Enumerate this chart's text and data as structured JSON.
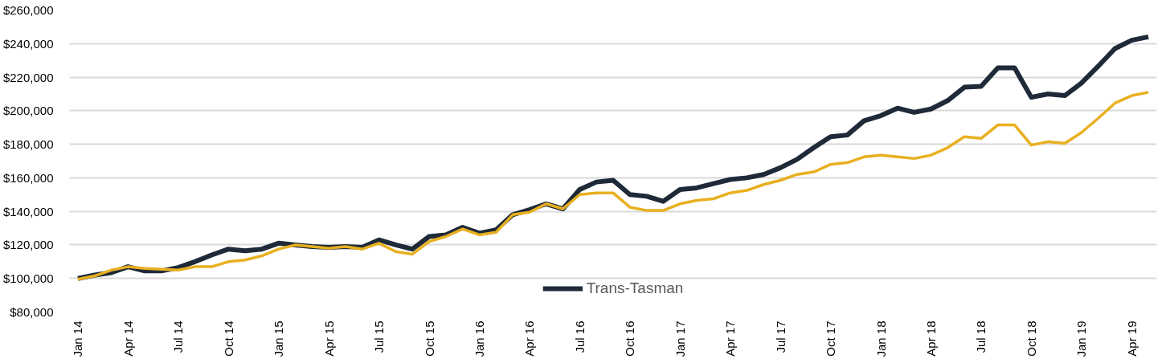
{
  "chart_data": {
    "type": "line",
    "categories": [
      "Jan 14",
      null,
      null,
      "Apr 14",
      null,
      null,
      "Jul 14",
      null,
      null,
      "Oct 14",
      null,
      null,
      "Jan 15",
      null,
      null,
      "Apr 15",
      null,
      null,
      "Jul 15",
      null,
      null,
      "Oct 15",
      null,
      null,
      "Jan 16",
      null,
      null,
      "Apr 16",
      null,
      null,
      "Jul 16",
      null,
      null,
      "Oct 16",
      null,
      null,
      "Jan 17",
      null,
      null,
      "Apr 17",
      null,
      null,
      "Jul 17",
      null,
      null,
      "Oct 17",
      null,
      null,
      "Jan 18",
      null,
      null,
      "Apr 18",
      null,
      null,
      "Jul 18",
      null,
      null,
      "Oct 18",
      null,
      null,
      "Jan 19",
      null,
      null,
      "Apr 19",
      null
    ],
    "series": [
      {
        "name": "Trans-Tasman",
        "color": "#1f2a38",
        "values": [
          100000,
          102000,
          103500,
          107000,
          104500,
          104500,
          106500,
          110000,
          114000,
          117500,
          116500,
          117500,
          121000,
          120000,
          119000,
          118500,
          119000,
          118500,
          123000,
          120000,
          117500,
          125000,
          126000,
          130500,
          127000,
          129000,
          138000,
          141000,
          144500,
          141500,
          153000,
          157500,
          158500,
          150000,
          149000,
          146000,
          153000,
          154000,
          156500,
          159000,
          160000,
          162000,
          166000,
          171000,
          178000,
          184500,
          185500,
          194000,
          197000,
          201500,
          199000,
          201000,
          206000,
          214000,
          214500,
          225500,
          225500,
          208000,
          210000,
          209000,
          216500,
          226500,
          237000,
          242000,
          244000
        ]
      },
      {
        "color": "#e8b020",
        "values": [
          99500,
          101500,
          105000,
          107000,
          106000,
          105500,
          105000,
          107000,
          107000,
          110000,
          111000,
          113500,
          117500,
          120000,
          119000,
          118000,
          119000,
          117500,
          121000,
          116000,
          114500,
          122000,
          125000,
          129500,
          126000,
          127500,
          138000,
          139500,
          144500,
          141500,
          150000,
          151000,
          151000,
          142500,
          140500,
          140500,
          144500,
          146500,
          147500,
          151000,
          152500,
          156000,
          158500,
          162000,
          163500,
          168000,
          169000,
          172500,
          173500,
          172500,
          171500,
          173500,
          178000,
          184500,
          183500,
          191500,
          191500,
          179500,
          181500,
          180500,
          187000,
          195500,
          204500,
          209000,
          211000
        ]
      }
    ],
    "ylim": [
      80000,
      260000
    ],
    "yticks": [
      {
        "value": 80000,
        "label": "$80,000"
      },
      {
        "value": 100000,
        "label": "$100,000"
      },
      {
        "value": 120000,
        "label": "$120,000"
      },
      {
        "value": 140000,
        "label": "$140,000"
      },
      {
        "value": 160000,
        "label": "$160,000"
      },
      {
        "value": 180000,
        "label": "$180,000"
      },
      {
        "value": 200000,
        "label": "$200,000"
      },
      {
        "value": 220000,
        "label": "$220,000"
      },
      {
        "value": 240000,
        "label": "$240,000"
      },
      {
        "value": 260000,
        "label": "$260,000"
      }
    ],
    "grid": "y",
    "legend": "bottom",
    "line_style": "solid"
  }
}
